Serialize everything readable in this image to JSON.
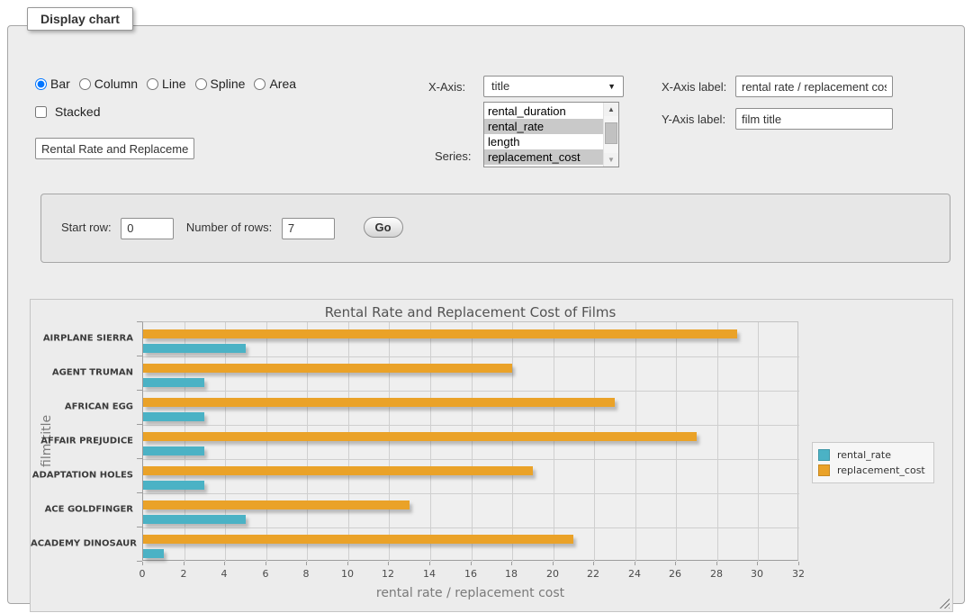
{
  "panel": {
    "legend": "Display chart"
  },
  "chart_type_options": [
    {
      "label": "Bar",
      "selected": true
    },
    {
      "label": "Column",
      "selected": false
    },
    {
      "label": "Line",
      "selected": false
    },
    {
      "label": "Spline",
      "selected": false
    },
    {
      "label": "Area",
      "selected": false
    }
  ],
  "stacked": {
    "label": "Stacked",
    "checked": false
  },
  "title_input": {
    "value": "Rental Rate and Replacement Cost of Films"
  },
  "x_axis": {
    "label": "X-Axis:",
    "selected": "title"
  },
  "series_select": {
    "label": "Series:",
    "options": [
      {
        "label": "rental_duration",
        "selected": false
      },
      {
        "label": "rental_rate",
        "selected": true
      },
      {
        "label": "length",
        "selected": false
      },
      {
        "label": "replacement_cost",
        "selected": true
      }
    ]
  },
  "x_axis_label": {
    "label": "X-Axis label:",
    "value": "rental rate / replacement cost"
  },
  "y_axis_label": {
    "label": "Y-Axis label:",
    "value": "film title"
  },
  "rows_panel": {
    "start_row_label": "Start row:",
    "start_row_value": "0",
    "num_rows_label": "Number of rows:",
    "num_rows_value": "7",
    "go_label": "Go"
  },
  "chart_data": {
    "type": "bar",
    "orientation": "horizontal",
    "title": "Rental Rate and Replacement Cost of Films",
    "categories": [
      "AIRPLANE SIERRA",
      "AGENT TRUMAN",
      "AFRICAN EGG",
      "AFFAIR PREJUDICE",
      "ADAPTATION HOLES",
      "ACE GOLDFINGER",
      "ACADEMY DINOSAUR"
    ],
    "series": [
      {
        "name": "rental_rate",
        "color": "#4bb2c5",
        "values": [
          4.99,
          2.99,
          2.99,
          2.99,
          2.99,
          4.99,
          0.99
        ]
      },
      {
        "name": "replacement_cost",
        "color": "#EAA228",
        "values": [
          28.99,
          17.99,
          22.99,
          26.99,
          18.99,
          12.99,
          20.99
        ]
      }
    ],
    "xlabel": "rental rate / replacement cost",
    "ylabel": "film title",
    "xlim": [
      0,
      32
    ],
    "xticks": [
      0,
      2,
      4,
      6,
      8,
      10,
      12,
      14,
      16,
      18,
      20,
      22,
      24,
      26,
      28,
      30,
      32
    ],
    "grid": true,
    "legend_position": "right"
  }
}
